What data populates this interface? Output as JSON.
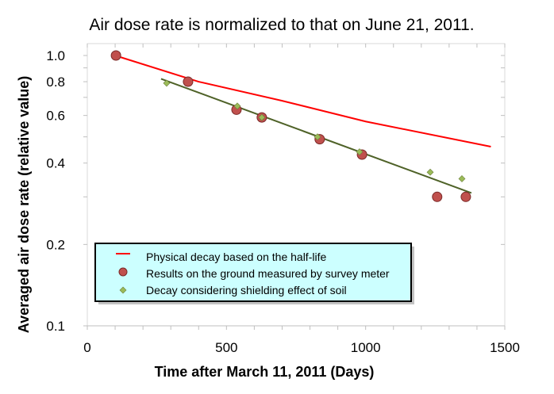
{
  "chart_data": {
    "type": "scatter",
    "title": "Air dose rate is normalized to that on June 21, 2011.",
    "xlabel": "Time after March 11, 2011 (Days)",
    "ylabel": "Averaged air dose rate (relative value)",
    "xlim": [
      0,
      1500
    ],
    "ylim": [
      0.1,
      1.0
    ],
    "yscale": "log",
    "xticks": [
      0,
      500,
      1000,
      1500
    ],
    "yticks": [
      0.1,
      0.2,
      0.4,
      0.6,
      0.8,
      1.0
    ],
    "ytick_labels": [
      "0.1",
      "0.2",
      "0.4",
      "0.6",
      "0.8",
      "1.0"
    ],
    "grid": false,
    "legend_position": "bottom-left (inside plot)",
    "legend_background": "#ccffff",
    "series": [
      {
        "name": "Physical decay based on the half-life",
        "kind": "line",
        "color": "#ff0000",
        "x": [
          100,
          400,
          700,
          1000,
          1450
        ],
        "y": [
          1.0,
          0.8,
          0.68,
          0.57,
          0.46
        ]
      },
      {
        "name": "Results on the ground measured by survey meter",
        "kind": "circle",
        "color": "#c0504d",
        "x": [
          103,
          362,
          536,
          627,
          835,
          987,
          1257,
          1360
        ],
        "y": [
          1.0,
          0.8,
          0.63,
          0.59,
          0.49,
          0.43,
          0.3,
          0.3
        ]
      },
      {
        "name": "Decay considering shielding effect of soil",
        "kind": "diamond",
        "color": "#9bbb59",
        "x": [
          285,
          539,
          627,
          827,
          978,
          1232,
          1346
        ],
        "y": [
          0.79,
          0.65,
          0.59,
          0.5,
          0.44,
          0.37,
          0.35
        ]
      },
      {
        "kind": "trendline",
        "color": "#4f6228",
        "x": [
          265,
          1380
        ],
        "y": [
          0.82,
          0.31
        ]
      }
    ]
  }
}
